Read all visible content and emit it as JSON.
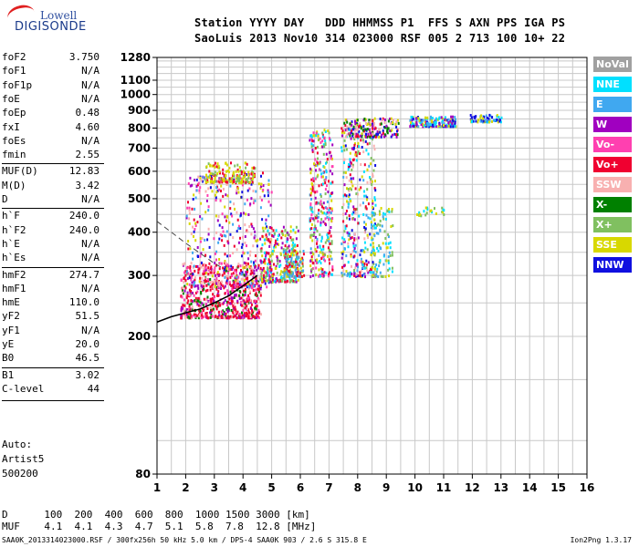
{
  "logo": {
    "line1": "Lowell",
    "line2": "DIGISONDE"
  },
  "header": {
    "labels": "Station YYYY DAY   DDD HHMMSS P1  FFS S AXN PPS IGA PS",
    "values": "SaoLuis 2013 Nov10 314 023000 RSF 005 2 713 100 10+ 22"
  },
  "params": [
    {
      "k": "foF2",
      "v": "3.750"
    },
    {
      "k": "foF1",
      "v": "N/A"
    },
    {
      "k": "foF1p",
      "v": "N/A"
    },
    {
      "k": "foE",
      "v": "N/A"
    },
    {
      "k": "foEp",
      "v": "0.48"
    },
    {
      "k": "fxI",
      "v": "4.60"
    },
    {
      "k": "foEs",
      "v": "N/A"
    },
    {
      "k": "fmin",
      "v": "2.55"
    },
    {
      "k": "MUF(D)",
      "v": "12.83"
    },
    {
      "k": "M(D)",
      "v": "3.42"
    },
    {
      "k": "D",
      "v": "N/A"
    },
    {
      "k": "h`F",
      "v": "240.0"
    },
    {
      "k": "h`F2",
      "v": "240.0"
    },
    {
      "k": "h`E",
      "v": "N/A"
    },
    {
      "k": "h`Es",
      "v": "N/A"
    },
    {
      "k": "hmF2",
      "v": "274.7"
    },
    {
      "k": "hmF1",
      "v": "N/A"
    },
    {
      "k": "hmE",
      "v": "110.0"
    },
    {
      "k": "yF2",
      "v": "51.5"
    },
    {
      "k": "yF1",
      "v": "N/A"
    },
    {
      "k": "yE",
      "v": "20.0"
    },
    {
      "k": "B0",
      "v": "46.5"
    },
    {
      "k": "B1",
      "v": "3.02"
    },
    {
      "k": "C-level",
      "v": "44"
    }
  ],
  "auto": {
    "line1": "Auto:",
    "line2": "Artist5",
    "line3": "500200"
  },
  "muf_table": {
    "d_row": "D      100  200  400  600  800  1000 1500 3000 [km]",
    "muf_row": "MUF    4.1  4.1  4.3  4.7  5.1  5.8  7.8  12.8 [MHz]"
  },
  "footer": {
    "left": "SAA0K_2013314023000.RSF / 300fx256h 50 kHz 5.0 km / DPS-4 SAA0K 903 / 2.6 S 315.8 E",
    "right": "Ion2Png 1.3.17"
  },
  "legend": [
    {
      "label": "NoVal",
      "color": "#a0a0a0"
    },
    {
      "label": "NNE",
      "color": "#00e0ff"
    },
    {
      "label": "E",
      "color": "#40a8f0"
    },
    {
      "label": "W",
      "color": "#a000c0"
    },
    {
      "label": "Vo-",
      "color": "#ff40b0"
    },
    {
      "label": "Vo+",
      "color": "#f00030"
    },
    {
      "label": "SSW",
      "color": "#f8b0b0"
    },
    {
      "label": "X-",
      "color": "#008000"
    },
    {
      "label": "X+",
      "color": "#80c060"
    },
    {
      "label": "SSE",
      "color": "#d8d800"
    },
    {
      "label": "NNW",
      "color": "#1010e0"
    }
  ],
  "chart_data": {
    "type": "scatter",
    "title": "",
    "xlabel": "",
    "ylabel": "",
    "xlim": [
      1,
      16
    ],
    "ylim": [
      80,
      1280
    ],
    "yscale": "log",
    "x_ticks": [
      "1",
      "2",
      "3",
      "4",
      "5",
      "6",
      "7",
      "8",
      "9",
      "10",
      "11",
      "12",
      "13",
      "14",
      "15",
      "16"
    ],
    "y_ticks": [
      "80",
      "200",
      "300",
      "400",
      "500",
      "600",
      "700",
      "800",
      "900",
      "1000",
      "1100",
      "1280"
    ],
    "grid": true,
    "trace_curve": {
      "x": [
        1.0,
        1.5,
        2.0,
        2.5,
        3.0,
        3.5,
        4.0,
        4.5
      ],
      "y": [
        220,
        228,
        234,
        240,
        250,
        262,
        280,
        300
      ]
    },
    "dashed_curve": {
      "x": [
        1.0,
        1.5,
        2.0,
        2.5,
        3.0,
        3.5
      ],
      "y": [
        430,
        400,
        372,
        348,
        325,
        308
      ]
    },
    "clusters": [
      {
        "x": [
          1.8,
          4.6
        ],
        "y": [
          228,
          330
        ],
        "colors": [
          "Vo+",
          "Vo+",
          "Vo-",
          "W",
          "Vo+",
          "SSW",
          "X-"
        ],
        "n": 700
      },
      {
        "x": [
          2.0,
          5.0
        ],
        "y": [
          280,
          600
        ],
        "colors": [
          "W",
          "Vo+",
          "SSE",
          "NNW",
          "E",
          "Vo-",
          "SSW"
        ],
        "n": 420
      },
      {
        "x": [
          2.6,
          4.4
        ],
        "y": [
          560,
          640
        ],
        "colors": [
          "SSE",
          "SSE",
          "X+",
          "Vo+"
        ],
        "n": 160
      },
      {
        "x": [
          4.6,
          5.9
        ],
        "y": [
          290,
          420
        ],
        "colors": [
          "SSE",
          "X+",
          "Vo+",
          "NNE",
          "W"
        ],
        "n": 260
      },
      {
        "x": [
          5.4,
          6.1
        ],
        "y": [
          300,
          360
        ],
        "colors": [
          "SSE",
          "X+",
          "E",
          "Vo+"
        ],
        "n": 120
      },
      {
        "x": [
          6.3,
          7.1
        ],
        "y": [
          300,
          800
        ],
        "colors": [
          "SSE",
          "Vo+",
          "NNE",
          "E",
          "W",
          "X+",
          "Vo-"
        ],
        "n": 320
      },
      {
        "x": [
          7.4,
          8.6
        ],
        "y": [
          300,
          860
        ],
        "colors": [
          "SSE",
          "Vo+",
          "NNE",
          "E",
          "W",
          "X+",
          "SSW",
          "NNW"
        ],
        "n": 360
      },
      {
        "x": [
          8.4,
          9.2
        ],
        "y": [
          300,
          480
        ],
        "colors": [
          "SSE",
          "X+",
          "NNE",
          "E"
        ],
        "n": 110
      },
      {
        "x": [
          7.5,
          9.4
        ],
        "y": [
          760,
          860
        ],
        "colors": [
          "Vo+",
          "W",
          "NNW",
          "SSE",
          "X-",
          "SSW"
        ],
        "n": 160
      },
      {
        "x": [
          9.8,
          11.4
        ],
        "y": [
          815,
          870
        ],
        "colors": [
          "NNW",
          "NNE",
          "E",
          "W",
          "SSE"
        ],
        "n": 170
      },
      {
        "x": [
          11.9,
          13.0
        ],
        "y": [
          840,
          880
        ],
        "colors": [
          "NNW",
          "NNE",
          "SSE",
          "E"
        ],
        "n": 70
      },
      {
        "x": [
          10.0,
          11.0
        ],
        "y": [
          450,
          475
        ],
        "colors": [
          "SSE",
          "X+",
          "NNE"
        ],
        "n": 25
      }
    ]
  }
}
